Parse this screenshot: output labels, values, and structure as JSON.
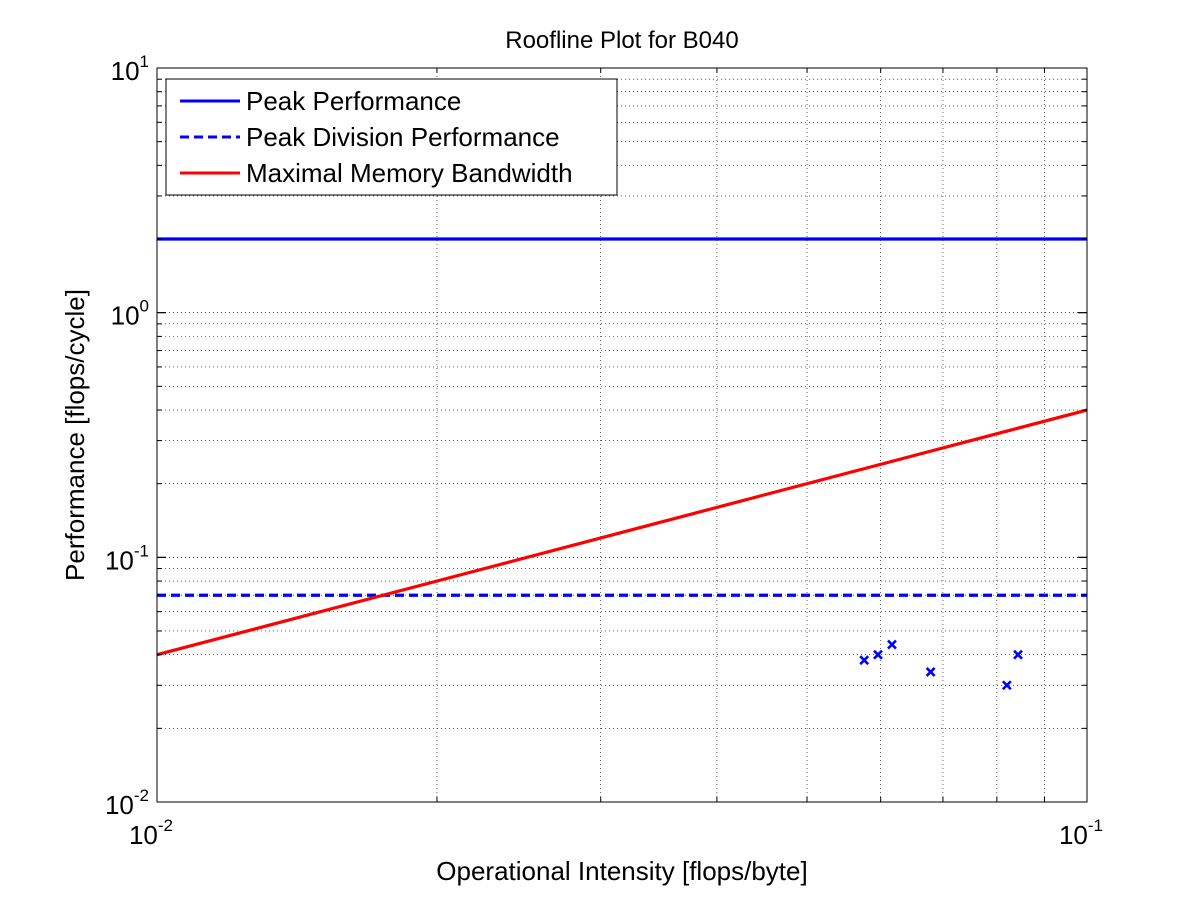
{
  "chart_data": {
    "type": "line",
    "title": "Roofline Plot for B040",
    "xlabel": "Operational Intensity [flops/byte]",
    "ylabel": "Performance [flops/cycle]",
    "xscale": "log",
    "yscale": "log",
    "xlim": [
      0.01,
      0.1
    ],
    "ylim": [
      0.01,
      10
    ],
    "grid": true,
    "legend_position": "top-left",
    "x_tick_labels": [
      {
        "value": 0.01,
        "base": "10",
        "exp": "-2"
      },
      {
        "value": 0.1,
        "base": "10",
        "exp": "-1"
      }
    ],
    "y_tick_labels": [
      {
        "value": 0.01,
        "base": "10",
        "exp": "-2"
      },
      {
        "value": 0.1,
        "base": "10",
        "exp": "-1"
      },
      {
        "value": 1,
        "base": "10",
        "exp": "0"
      },
      {
        "value": 10,
        "base": "10",
        "exp": "1"
      }
    ],
    "series": [
      {
        "name": "Peak Performance",
        "style": "solid",
        "color": "#0000ff",
        "x": [
          0.01,
          0.1
        ],
        "y": [
          2,
          2
        ]
      },
      {
        "name": "Peak Division Performance",
        "style": "dashed",
        "color": "#0000ff",
        "x": [
          0.01,
          0.1
        ],
        "y": [
          0.07,
          0.07
        ]
      },
      {
        "name": "Maximal Memory Bandwidth",
        "style": "solid",
        "color": "#ff0000",
        "x": [
          0.01,
          0.1
        ],
        "y": [
          0.04,
          0.4
        ]
      }
    ],
    "points": {
      "marker": "x",
      "color": "#0000ff",
      "x": [
        0.0576,
        0.0596,
        0.0617,
        0.0679,
        0.082,
        0.0843
      ],
      "y": [
        0.038,
        0.04,
        0.044,
        0.034,
        0.03,
        0.04
      ]
    }
  }
}
